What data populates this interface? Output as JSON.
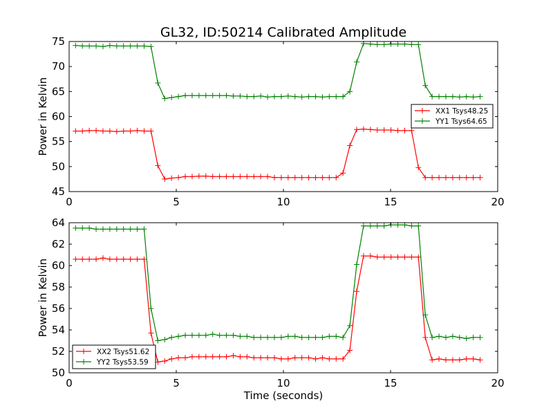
{
  "figure": {
    "title": "GL32, ID:50214 Calibrated Amplitude"
  },
  "chart_data": [
    {
      "type": "line",
      "title": "GL32, ID:50214 Calibrated Amplitude",
      "xlabel": "",
      "ylabel": "Power in Kelvin",
      "xlim": [
        0,
        20
      ],
      "ylim": [
        45,
        75
      ],
      "xticks": [
        0,
        5,
        10,
        15,
        20
      ],
      "yticks": [
        45,
        50,
        55,
        60,
        65,
        70,
        75
      ],
      "legend_position": "center-right",
      "x": [
        0.3,
        0.62,
        0.94,
        1.26,
        1.58,
        1.9,
        2.22,
        2.54,
        2.86,
        3.18,
        3.5,
        3.82,
        4.14,
        4.46,
        4.78,
        5.1,
        5.42,
        5.74,
        6.06,
        6.38,
        6.7,
        7.02,
        7.34,
        7.66,
        7.98,
        8.3,
        8.62,
        8.94,
        9.26,
        9.58,
        9.9,
        10.22,
        10.54,
        10.86,
        11.18,
        11.5,
        11.82,
        12.14,
        12.46,
        12.78,
        13.1,
        13.42,
        13.74,
        14.06,
        14.38,
        14.7,
        15.02,
        15.34,
        15.66,
        15.98,
        16.3,
        16.62,
        16.94,
        17.26,
        17.58,
        17.9,
        18.22,
        18.54,
        18.86,
        19.18
      ],
      "series": [
        {
          "name": "XX1 Tsys48.25",
          "color": "#ff0000",
          "values": [
            57.1,
            57.1,
            57.2,
            57.2,
            57.1,
            57.1,
            57.0,
            57.1,
            57.1,
            57.2,
            57.1,
            57.1,
            50.2,
            47.5,
            47.7,
            47.8,
            48.0,
            48.0,
            48.1,
            48.1,
            48.0,
            48.0,
            48.0,
            48.0,
            48.0,
            48.0,
            48.0,
            48.0,
            48.0,
            47.8,
            47.8,
            47.8,
            47.8,
            47.8,
            47.8,
            47.8,
            47.8,
            47.8,
            47.8,
            48.7,
            54.2,
            57.4,
            57.5,
            57.4,
            57.3,
            57.3,
            57.3,
            57.2,
            57.2,
            57.2,
            49.8,
            47.8,
            47.8,
            47.8,
            47.8,
            47.8,
            47.8,
            47.8,
            47.8,
            47.8
          ]
        },
        {
          "name": "YY1 Tsys64.65",
          "color": "#008000",
          "values": [
            74.2,
            74.1,
            74.1,
            74.1,
            74.0,
            74.2,
            74.1,
            74.1,
            74.1,
            74.1,
            74.1,
            74.0,
            66.7,
            63.6,
            63.8,
            64.0,
            64.2,
            64.2,
            64.2,
            64.2,
            64.2,
            64.2,
            64.2,
            64.1,
            64.1,
            64.0,
            64.0,
            64.1,
            63.9,
            64.0,
            64.0,
            64.1,
            64.0,
            63.9,
            64.0,
            64.0,
            63.9,
            64.0,
            64.0,
            64.0,
            65.0,
            70.9,
            74.6,
            74.5,
            74.4,
            74.4,
            74.5,
            74.5,
            74.5,
            74.4,
            74.4,
            66.2,
            64.0,
            64.0,
            64.0,
            64.0,
            63.9,
            64.0,
            63.9,
            64.0
          ]
        }
      ]
    },
    {
      "type": "line",
      "title": "",
      "xlabel": "Time (seconds)",
      "ylabel": "Power in Kelvin",
      "xlim": [
        0,
        20
      ],
      "ylim": [
        50,
        64
      ],
      "xticks": [
        0,
        5,
        10,
        15,
        20
      ],
      "yticks": [
        50,
        52,
        54,
        56,
        58,
        60,
        62,
        64
      ],
      "legend_position": "lower-left",
      "x": [
        0.3,
        0.62,
        0.94,
        1.26,
        1.58,
        1.9,
        2.22,
        2.54,
        2.86,
        3.18,
        3.5,
        3.82,
        4.14,
        4.46,
        4.78,
        5.1,
        5.42,
        5.74,
        6.06,
        6.38,
        6.7,
        7.02,
        7.34,
        7.66,
        7.98,
        8.3,
        8.62,
        8.94,
        9.26,
        9.58,
        9.9,
        10.22,
        10.54,
        10.86,
        11.18,
        11.5,
        11.82,
        12.14,
        12.46,
        12.78,
        13.1,
        13.42,
        13.74,
        14.06,
        14.38,
        14.7,
        15.02,
        15.34,
        15.66,
        15.98,
        16.3,
        16.62,
        16.94,
        17.26,
        17.58,
        17.9,
        18.22,
        18.54,
        18.86,
        19.18
      ],
      "series": [
        {
          "name": "XX2 Tsys51.62",
          "color": "#ff0000",
          "values": [
            60.6,
            60.6,
            60.6,
            60.6,
            60.7,
            60.6,
            60.6,
            60.6,
            60.6,
            60.6,
            60.6,
            53.7,
            51.0,
            51.1,
            51.3,
            51.4,
            51.4,
            51.5,
            51.5,
            51.5,
            51.5,
            51.5,
            51.5,
            51.6,
            51.5,
            51.5,
            51.4,
            51.4,
            51.4,
            51.4,
            51.3,
            51.3,
            51.4,
            51.4,
            51.4,
            51.3,
            51.4,
            51.3,
            51.3,
            51.3,
            52.1,
            57.6,
            60.9,
            60.9,
            60.8,
            60.8,
            60.8,
            60.8,
            60.8,
            60.8,
            60.8,
            53.3,
            51.2,
            51.3,
            51.2,
            51.2,
            51.2,
            51.3,
            51.3,
            51.2
          ]
        },
        {
          "name": "YY2 Tsys53.59",
          "color": "#008000",
          "values": [
            63.5,
            63.5,
            63.5,
            63.4,
            63.4,
            63.4,
            63.4,
            63.4,
            63.4,
            63.4,
            63.4,
            56.0,
            53.0,
            53.1,
            53.3,
            53.4,
            53.5,
            53.5,
            53.5,
            53.5,
            53.6,
            53.5,
            53.5,
            53.5,
            53.4,
            53.4,
            53.3,
            53.3,
            53.3,
            53.3,
            53.3,
            53.4,
            53.4,
            53.3,
            53.3,
            53.3,
            53.3,
            53.4,
            53.4,
            53.3,
            54.4,
            60.1,
            63.7,
            63.7,
            63.7,
            63.7,
            63.8,
            63.8,
            63.8,
            63.7,
            63.7,
            55.4,
            53.3,
            53.4,
            53.3,
            53.4,
            53.3,
            53.2,
            53.3,
            53.3
          ]
        }
      ]
    }
  ]
}
